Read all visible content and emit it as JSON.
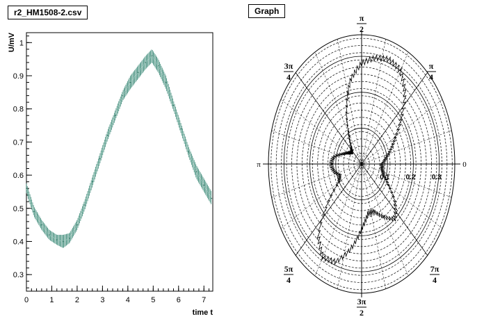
{
  "left_panel": {
    "title": "r2_HM1508-2.csv"
  },
  "right_panel": {
    "title": "Graph"
  },
  "chart_data": [
    {
      "type": "line",
      "title": "r2_HM1508-2.csv",
      "xlabel": "time t",
      "ylabel": "U/mV",
      "xlim": [
        0,
        7.35
      ],
      "ylim": [
        0.25,
        1.03
      ],
      "xticks": [
        0,
        1,
        2,
        3,
        4,
        5,
        6,
        7
      ],
      "yticks": [
        0.3,
        0.4,
        0.5,
        0.6,
        0.7,
        0.8,
        0.9,
        1
      ],
      "error_bars": true,
      "series": [
        {
          "x": [
            0,
            0.3,
            0.6,
            0.9,
            1.2,
            1.45,
            1.7,
            2.0,
            2.3,
            2.6,
            2.9,
            3.2,
            3.5,
            3.8,
            4.1,
            4.4,
            4.7,
            4.95,
            5.2,
            5.5,
            5.8,
            6.1,
            6.4,
            6.7,
            7.0,
            7.3
          ],
          "y": [
            0.56,
            0.49,
            0.45,
            0.42,
            0.405,
            0.4,
            0.41,
            0.45,
            0.51,
            0.58,
            0.65,
            0.72,
            0.78,
            0.84,
            0.88,
            0.91,
            0.94,
            0.96,
            0.93,
            0.88,
            0.81,
            0.74,
            0.67,
            0.61,
            0.57,
            0.53
          ],
          "error": [
            0.015,
            0.015,
            0.015,
            0.015,
            0.015,
            0.02,
            0.015,
            0.015,
            0.015,
            0.015,
            0.015,
            0.015,
            0.015,
            0.015,
            0.02,
            0.02,
            0.02,
            0.02,
            0.02,
            0.02,
            0.015,
            0.015,
            0.015,
            0.02,
            0.02,
            0.02
          ]
        }
      ]
    },
    {
      "type": "polar",
      "title": "Graph",
      "radial_ticks": [
        "0.1",
        "0.2",
        "0.3"
      ],
      "rmax": 0.36,
      "angle_labels": [
        {
          "angle": 0,
          "num": "0",
          "den": ""
        },
        {
          "angle": 45,
          "num": "π",
          "den": "4"
        },
        {
          "angle": 90,
          "num": "π",
          "den": "2"
        },
        {
          "angle": 135,
          "num": "3π",
          "den": "4"
        },
        {
          "angle": 180,
          "num": "π",
          "den": ""
        },
        {
          "angle": 225,
          "num": "5π",
          "den": "4"
        },
        {
          "angle": 270,
          "num": "3π",
          "den": "2"
        },
        {
          "angle": 315,
          "num": "7π",
          "den": "4"
        }
      ],
      "series": [
        {
          "theta_deg": [
            0,
            10,
            20,
            30,
            40,
            50,
            60,
            70,
            80,
            90,
            100,
            110,
            120,
            130,
            140,
            150,
            160,
            170,
            180,
            190,
            200,
            210,
            220,
            230,
            240,
            250,
            260,
            270,
            280,
            290,
            300,
            310,
            320,
            330,
            340,
            350,
            360
          ],
          "r": [
            0.08,
            0.095,
            0.12,
            0.15,
            0.2,
            0.26,
            0.3,
            0.31,
            0.3,
            0.28,
            0.24,
            0.17,
            0.1,
            0.06,
            0.05,
            0.06,
            0.08,
            0.11,
            0.12,
            0.11,
            0.09,
            0.1,
            0.17,
            0.26,
            0.3,
            0.29,
            0.24,
            0.18,
            0.14,
            0.14,
            0.17,
            0.2,
            0.17,
            0.12,
            0.09,
            0.08,
            0.08
          ]
        }
      ]
    }
  ]
}
